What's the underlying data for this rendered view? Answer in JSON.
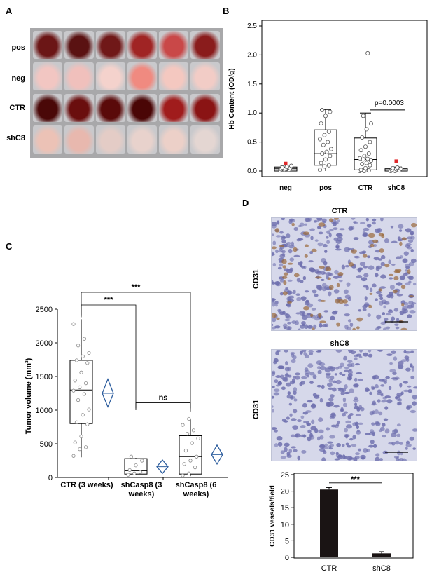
{
  "panels": {
    "a": "A",
    "b": "B",
    "c": "C",
    "d": "D"
  },
  "panel_a": {
    "rows": [
      "pos",
      "neg",
      "CTR",
      "shC8"
    ],
    "tint": [
      [
        "#6b1616",
        "#5a1212",
        "#701818",
        "#a02424",
        "#c94848",
        "#8a1c1c"
      ],
      [
        "#f2c6c2",
        "#f0c0bc",
        "#f4d2cc",
        "#f08a80",
        "#f4c8c0",
        "#f2ccc6"
      ],
      [
        "#4a0808",
        "#6a0e0e",
        "#5a0a0a",
        "#4a0606",
        "#a01c1c",
        "#8a1414"
      ],
      [
        "#ecc2b6",
        "#e8b8ae",
        "#e4ccc6",
        "#e8d2cc",
        "#ecd0c8",
        "#e4d6d2"
      ]
    ]
  },
  "panel_d": {
    "top_title": "CTR",
    "bottom_title": "shC8",
    "ylabel": "CD31",
    "stain_colors": {
      "background": "#d6d8ea",
      "nuclei": "#6e6fae",
      "vessels": "#9a6a3a"
    }
  },
  "chart_data": [
    {
      "id": "hb",
      "type": "box",
      "ylabel": "Hb Content (OD/g)",
      "categories": [
        "neg",
        "pos",
        "CTR",
        "shC8"
      ],
      "ylim": [
        0,
        2.5
      ],
      "yticks": [
        0.0,
        0.5,
        1.0,
        1.5,
        2.0,
        2.5
      ],
      "ytick_labels": [
        "0.0",
        "0.5",
        "1.0",
        "1.5",
        "2.0",
        "2.5"
      ],
      "boxes": [
        {
          "category": "neg",
          "whisker_low": 0.0,
          "q1": 0.0,
          "median": 0.04,
          "q3": 0.07,
          "whisker_high": 0.1
        },
        {
          "category": "pos",
          "whisker_low": 0.0,
          "q1": 0.1,
          "median": 0.3,
          "q3": 0.71,
          "whisker_high": 1.06
        },
        {
          "category": "CTR",
          "whisker_low": 0.0,
          "q1": 0.02,
          "median": 0.2,
          "q3": 0.57,
          "whisker_high": 1.0
        },
        {
          "category": "shC8",
          "whisker_low": 0.0,
          "q1": 0.0,
          "median": 0.02,
          "q3": 0.04,
          "whisker_high": 0.07
        }
      ],
      "points": [
        [
          0.01,
          0.02,
          0.02,
          0.03,
          0.04,
          0.05,
          0.06,
          0.07,
          0.09
        ],
        [
          0.02,
          0.08,
          0.1,
          0.14,
          0.2,
          0.26,
          0.3,
          0.33,
          0.38,
          0.45,
          0.5,
          0.55,
          0.62,
          0.68,
          0.82,
          0.95,
          1.02,
          1.05
        ],
        [
          0.0,
          0.0,
          0.01,
          0.02,
          0.05,
          0.1,
          0.12,
          0.14,
          0.18,
          0.2,
          0.21,
          0.22,
          0.26,
          0.3,
          0.36,
          0.42,
          0.5,
          0.58,
          0.72,
          0.82,
          0.95,
          2.03
        ],
        [
          0.0,
          0.0,
          0.01,
          0.02,
          0.03,
          0.04,
          0.05,
          0.06
        ]
      ],
      "outliers": [
        {
          "category": "neg",
          "value": 0.13
        },
        {
          "category": "shC8",
          "value": 0.17
        }
      ],
      "annotation": {
        "text": "p=0.0003",
        "from": "CTR",
        "to": "shC8",
        "y": 1.1
      },
      "colors": {
        "box": "#000000",
        "points": "#555555",
        "outlier": "#e0282a"
      }
    },
    {
      "id": "tumor",
      "type": "box",
      "ylabel": "Tumor volume (mm³)",
      "categories": [
        "CTR (3 weeks)",
        "shCasp8 (3 weeks)",
        "shCasp8 (6 weeks)"
      ],
      "category_lines": [
        [
          "CTR (3 weeks)"
        ],
        [
          "shCasp8 (3",
          "weeks)"
        ],
        [
          "shCasp8 (6",
          "weeks)"
        ]
      ],
      "ylim": [
        0,
        2500
      ],
      "yticks": [
        0,
        500,
        1000,
        1500,
        2000,
        2500
      ],
      "ytick_labels": [
        "0",
        "500",
        "1000",
        "1500",
        "2000",
        "2500"
      ],
      "boxes": [
        {
          "category": "CTR (3 weeks)",
          "whisker_low": 300,
          "q1": 800,
          "median": 1300,
          "q3": 1740,
          "whisker_high": 2350,
          "mean": 1250,
          "ci": [
            1050,
            1460
          ]
        },
        {
          "category": "shCasp8 (3 weeks)",
          "whisker_low": 40,
          "q1": 50,
          "median": 100,
          "q3": 280,
          "whisker_high": 290,
          "mean": 160,
          "ci": [
            60,
            260
          ]
        },
        {
          "category": "shCasp8 (6 weeks)",
          "whisker_low": 20,
          "q1": 50,
          "median": 310,
          "q3": 620,
          "whisker_high": 870,
          "mean": 340,
          "ci": [
            200,
            480
          ]
        }
      ],
      "points": [
        [
          320,
          420,
          450,
          520,
          610,
          790,
          820,
          930,
          1010,
          1150,
          1240,
          1290,
          1340,
          1400,
          1440,
          1560,
          1700,
          1740,
          1800,
          1850,
          1960,
          2060,
          2280
        ],
        [
          40,
          60,
          80,
          110,
          180,
          250,
          310
        ],
        [
          30,
          60,
          150,
          200,
          250,
          310,
          400,
          510,
          580,
          650,
          700,
          780,
          870
        ]
      ],
      "significance": [
        {
          "from": "CTR (3 weeks)",
          "to": "shCasp8 (6 weeks)",
          "label": "***",
          "y": 2800
        },
        {
          "from": "CTR (3 weeks)",
          "to": "shCasp8 (3 weeks)",
          "label": "***",
          "y": 2550
        },
        {
          "from": "shCasp8 (3 weeks)",
          "to": "shCasp8 (6 weeks)",
          "label": "ns",
          "y": 1110
        }
      ],
      "colors": {
        "box": "#000000",
        "points": "#888888",
        "diamond": "#2f5f9f"
      }
    },
    {
      "id": "cd31",
      "type": "bar",
      "ylabel": "CD31 vessels/field",
      "categories": [
        "CTR",
        "shC8"
      ],
      "values": [
        20.5,
        1.2
      ],
      "errors": [
        0.6,
        0.5
      ],
      "ylim": [
        0,
        25
      ],
      "yticks": [
        0,
        5,
        10,
        15,
        20,
        25
      ],
      "ytick_labels": [
        "0",
        "5",
        "10",
        "15",
        "20",
        "25"
      ],
      "significance": {
        "label": "***",
        "from": "CTR",
        "to": "shC8",
        "y": 22.5
      },
      "colors": {
        "bar": "#1a1414"
      }
    }
  ]
}
